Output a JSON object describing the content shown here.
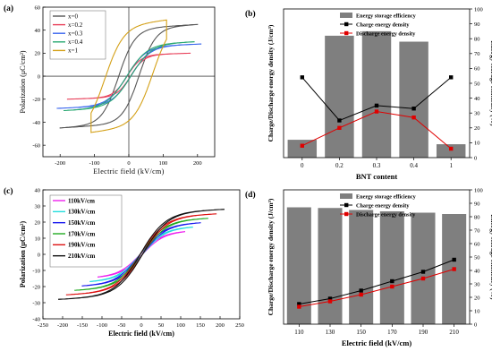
{
  "chart_data": [
    {
      "panel_label": "(a)",
      "type": "line",
      "xlabel": "Electric field (kV/cm)",
      "ylabel": "Polarization (μC/cm²)",
      "xlim": [
        -250,
        250
      ],
      "ylim": [
        -70,
        60
      ],
      "xticks": [
        -200,
        -100,
        0,
        100,
        200
      ],
      "yticks": [
        -60,
        -40,
        -20,
        0,
        20,
        40,
        60
      ],
      "grid": false,
      "legend_position": "top-left",
      "series": [
        {
          "name": "x=0",
          "color": "#555555",
          "loop": {
            "Emax": 200,
            "Pmax": 45,
            "Pr": 25,
            "Ec": 30,
            "w": 12
          }
        },
        {
          "name": "x=0.2",
          "color": "#e8405a",
          "loop": {
            "Emax": 180,
            "Pmax": 20,
            "Pr": 2.5,
            "Ec": 5,
            "w": 60
          }
        },
        {
          "name": "x=0.3",
          "color": "#3a66ee",
          "loop": {
            "Emax": 210,
            "Pmax": 28,
            "Pr": 3,
            "Ec": 6,
            "w": 60
          }
        },
        {
          "name": "x=0.4",
          "color": "#2aa872",
          "loop": {
            "Emax": 190,
            "Pmax": 30,
            "Pr": 3,
            "Ec": 6,
            "w": 60
          }
        },
        {
          "name": "x=1",
          "color": "#d4a017",
          "loop": {
            "Emax": 110,
            "Pmax": 49,
            "Pr": 42,
            "Ec": 70,
            "w": 8
          }
        }
      ]
    },
    {
      "panel_label": "(b)",
      "type": "bar",
      "categories": [
        "0",
        "0.2",
        "0.3",
        "0.4",
        "1"
      ],
      "xlabel": "BNT content",
      "ylabel": "Charge/Discharge energy density (J/cm³)",
      "ylabel_right": "Energy storage efficiency (%)",
      "ylim_right": [
        0,
        100
      ],
      "yticks_right": [
        0,
        10,
        20,
        30,
        40,
        50,
        60,
        70,
        80,
        90,
        100
      ],
      "legend_position": "top-right",
      "series": [
        {
          "name": "Energy storage efficiency",
          "type": "bar",
          "axis": "right",
          "color": "#7f7f7f",
          "values": [
            12,
            82,
            85,
            78,
            9
          ]
        },
        {
          "name": "Charge energy density",
          "type": "line",
          "axis": "right",
          "color": "#000000",
          "values": [
            54,
            25,
            35,
            33,
            54
          ]
        },
        {
          "name": "Discharge energy density",
          "type": "line",
          "axis": "right",
          "color": "#e00000",
          "values": [
            8,
            20,
            31,
            27,
            6
          ]
        }
      ]
    },
    {
      "panel_label": "(c)",
      "type": "line",
      "xlabel": "Electric field (kV/cm)",
      "ylabel": "Polarization (μC/cm²)",
      "xlim": [
        -250,
        250
      ],
      "ylim": [
        -40,
        40
      ],
      "xticks": [
        -250,
        -200,
        -150,
        -100,
        -50,
        0,
        50,
        100,
        150,
        200,
        250
      ],
      "yticks": [
        -40,
        -30,
        -20,
        -10,
        0,
        10,
        20,
        30,
        40
      ],
      "grid": false,
      "legend_position": "top-left",
      "series": [
        {
          "name": "110kV/cm",
          "color": "#ee22ee",
          "loop": {
            "Emax": 110,
            "Pmax": 14.5,
            "Pr": 0.8,
            "Ec": 3,
            "w": 400
          }
        },
        {
          "name": "130kV/cm",
          "color": "#22dddd",
          "loop": {
            "Emax": 130,
            "Pmax": 17.2,
            "Pr": 0.9,
            "Ec": 3,
            "w": 400
          }
        },
        {
          "name": "150kV/cm",
          "color": "#1a1aee",
          "loop": {
            "Emax": 150,
            "Pmax": 19.8,
            "Pr": 1.0,
            "Ec": 3,
            "w": 400
          }
        },
        {
          "name": "170kV/cm",
          "color": "#22aa22",
          "loop": {
            "Emax": 170,
            "Pmax": 22.5,
            "Pr": 1.1,
            "Ec": 3,
            "w": 400
          }
        },
        {
          "name": "190kV/cm",
          "color": "#dd1111",
          "loop": {
            "Emax": 190,
            "Pmax": 25.2,
            "Pr": 1.2,
            "Ec": 3,
            "w": 400
          }
        },
        {
          "name": "210kV/cm",
          "color": "#111111",
          "loop": {
            "Emax": 210,
            "Pmax": 28,
            "Pr": 1.3,
            "Ec": 3,
            "w": 400
          }
        }
      ]
    },
    {
      "panel_label": "(d)",
      "type": "bar",
      "categories": [
        "110",
        "130",
        "150",
        "170",
        "190",
        "210"
      ],
      "xlabel": "Electric field (kV/cm)",
      "ylabel": "Charge/Discharge energy density (J/cm³)",
      "ylabel_right": "Energy storage efficiency (%)",
      "ylim_right": [
        0,
        100
      ],
      "yticks_right": [
        0,
        10,
        20,
        30,
        40,
        50,
        60,
        70,
        80,
        90,
        100
      ],
      "legend_position": "top-right",
      "series": [
        {
          "name": "Energy storage efficiency",
          "type": "bar",
          "axis": "right",
          "color": "#7f7f7f",
          "values": [
            87,
            86.5,
            85,
            84,
            83,
            82
          ]
        },
        {
          "name": "Charge energy density",
          "type": "line",
          "axis": "right",
          "color": "#000000",
          "values": [
            15,
            19,
            25,
            32,
            39,
            48
          ]
        },
        {
          "name": "Discharge energy density",
          "type": "line",
          "axis": "right",
          "color": "#e00000",
          "values": [
            13,
            17,
            22,
            28,
            34,
            41
          ]
        }
      ]
    }
  ]
}
